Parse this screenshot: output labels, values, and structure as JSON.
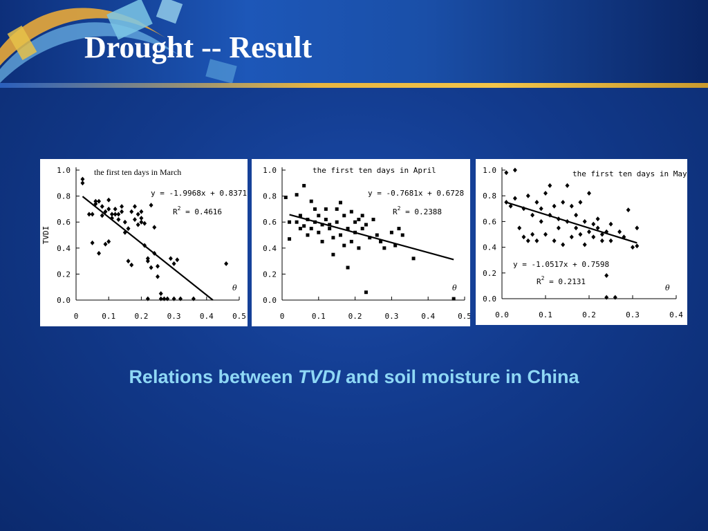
{
  "slide": {
    "title": "Drought -- Result",
    "caption_pre": "Relations between ",
    "caption_em": "TVDI",
    "caption_post": " and soil moisture in China"
  },
  "chart_data": [
    {
      "type": "scatter",
      "title": "the first ten days in March",
      "ylabel": "TVDI",
      "xlabel": "θ",
      "xlim": [
        0,
        0.5
      ],
      "ylim": [
        0,
        1.0
      ],
      "x_ticks": [
        "0",
        "0.1",
        "0.2",
        "0.3",
        "0.4",
        "0.5"
      ],
      "y_ticks": [
        "0.0",
        "0.2",
        "0.4",
        "0.6",
        "0.8",
        "1.0"
      ],
      "equation": "y = -1.9968x + 0.8371",
      "r2_label": "R",
      "r2_sup": "2",
      "r2_value": " = 0.4616",
      "regression": {
        "slope": -1.9968,
        "intercept": 0.8371
      },
      "marker": "diamond",
      "points": [
        [
          0.02,
          0.93
        ],
        [
          0.02,
          0.9
        ],
        [
          0.04,
          0.66
        ],
        [
          0.05,
          0.66
        ],
        [
          0.05,
          0.44
        ],
        [
          0.06,
          0.76
        ],
        [
          0.06,
          0.74
        ],
        [
          0.07,
          0.76
        ],
        [
          0.07,
          0.36
        ],
        [
          0.08,
          0.72
        ],
        [
          0.08,
          0.65
        ],
        [
          0.09,
          0.68
        ],
        [
          0.09,
          0.43
        ],
        [
          0.1,
          0.45
        ],
        [
          0.1,
          0.7
        ],
        [
          0.1,
          0.77
        ],
        [
          0.11,
          0.66
        ],
        [
          0.11,
          0.63
        ],
        [
          0.12,
          0.66
        ],
        [
          0.12,
          0.7
        ],
        [
          0.13,
          0.62
        ],
        [
          0.13,
          0.66
        ],
        [
          0.14,
          0.68
        ],
        [
          0.14,
          0.72
        ],
        [
          0.15,
          0.52
        ],
        [
          0.15,
          0.6
        ],
        [
          0.16,
          0.55
        ],
        [
          0.16,
          0.3
        ],
        [
          0.17,
          0.27
        ],
        [
          0.17,
          0.68
        ],
        [
          0.18,
          0.62
        ],
        [
          0.18,
          0.72
        ],
        [
          0.19,
          0.58
        ],
        [
          0.19,
          0.66
        ],
        [
          0.2,
          0.6
        ],
        [
          0.2,
          0.63
        ],
        [
          0.2,
          0.68
        ],
        [
          0.21,
          0.42
        ],
        [
          0.21,
          0.59
        ],
        [
          0.22,
          0.32
        ],
        [
          0.22,
          0.3
        ],
        [
          0.23,
          0.25
        ],
        [
          0.23,
          0.73
        ],
        [
          0.24,
          0.36
        ],
        [
          0.24,
          0.56
        ],
        [
          0.25,
          0.26
        ],
        [
          0.25,
          0.18
        ],
        [
          0.26,
          0.05
        ],
        [
          0.26,
          0.01
        ],
        [
          0.27,
          0.01
        ],
        [
          0.28,
          0.01
        ],
        [
          0.29,
          0.32
        ],
        [
          0.3,
          0.28
        ],
        [
          0.31,
          0.31
        ],
        [
          0.22,
          0.01
        ],
        [
          0.3,
          0.01
        ],
        [
          0.32,
          0.01
        ],
        [
          0.36,
          0.01
        ],
        [
          0.46,
          0.28
        ]
      ]
    },
    {
      "type": "scatter",
      "title": "the first ten days in April",
      "ylabel": "",
      "xlabel": "θ",
      "xlim": [
        0,
        0.5
      ],
      "ylim": [
        0,
        1.0
      ],
      "x_ticks": [
        "0",
        "0.1",
        "0.2",
        "0.3",
        "0.4",
        "0.5"
      ],
      "y_ticks": [
        "0.0",
        "0.2",
        "0.4",
        "0.6",
        "0.8",
        "1.0"
      ],
      "equation": "y = -0.7681x + 0.6728",
      "r2_label": "R",
      "r2_sup": "2",
      "r2_value": " = 0.2388",
      "regression": {
        "slope": -0.7681,
        "intercept": 0.6728
      },
      "marker": "square",
      "points": [
        [
          0.01,
          0.79
        ],
        [
          0.02,
          0.6
        ],
        [
          0.02,
          0.47
        ],
        [
          0.04,
          0.81
        ],
        [
          0.04,
          0.6
        ],
        [
          0.05,
          0.55
        ],
        [
          0.05,
          0.65
        ],
        [
          0.06,
          0.57
        ],
        [
          0.06,
          0.88
        ],
        [
          0.07,
          0.5
        ],
        [
          0.07,
          0.62
        ],
        [
          0.08,
          0.55
        ],
        [
          0.08,
          0.76
        ],
        [
          0.09,
          0.6
        ],
        [
          0.09,
          0.7
        ],
        [
          0.1,
          0.52
        ],
        [
          0.1,
          0.65
        ],
        [
          0.11,
          0.58
        ],
        [
          0.11,
          0.45
        ],
        [
          0.12,
          0.62
        ],
        [
          0.12,
          0.7
        ],
        [
          0.13,
          0.55
        ],
        [
          0.13,
          0.58
        ],
        [
          0.14,
          0.48
        ],
        [
          0.14,
          0.35
        ],
        [
          0.15,
          0.7
        ],
        [
          0.15,
          0.6
        ],
        [
          0.16,
          0.75
        ],
        [
          0.16,
          0.5
        ],
        [
          0.17,
          0.65
        ],
        [
          0.17,
          0.42
        ],
        [
          0.18,
          0.55
        ],
        [
          0.18,
          0.25
        ],
        [
          0.19,
          0.68
        ],
        [
          0.19,
          0.45
        ],
        [
          0.2,
          0.6
        ],
        [
          0.2,
          0.52
        ],
        [
          0.21,
          0.62
        ],
        [
          0.21,
          0.4
        ],
        [
          0.22,
          0.65
        ],
        [
          0.22,
          0.55
        ],
        [
          0.23,
          0.58
        ],
        [
          0.23,
          0.06
        ],
        [
          0.24,
          0.48
        ],
        [
          0.25,
          0.62
        ],
        [
          0.26,
          0.5
        ],
        [
          0.27,
          0.45
        ],
        [
          0.28,
          0.4
        ],
        [
          0.3,
          0.52
        ],
        [
          0.31,
          0.42
        ],
        [
          0.32,
          0.55
        ],
        [
          0.33,
          0.5
        ],
        [
          0.36,
          0.32
        ],
        [
          0.47,
          0.01
        ]
      ]
    },
    {
      "type": "scatter",
      "title": "the first ten days in May",
      "ylabel": "",
      "xlabel": "θ",
      "xlim": [
        0,
        0.4
      ],
      "ylim": [
        0,
        1.0
      ],
      "x_ticks": [
        "0.0",
        "0.1",
        "0.2",
        "0.3",
        "0.4"
      ],
      "y_ticks": [
        "0.0",
        "0.2",
        "0.4",
        "0.6",
        "0.8",
        "1.0"
      ],
      "equation": "y = -1.0517x + 0.7598",
      "r2_label": "R",
      "r2_sup": "2",
      "r2_value": " = 0.2131",
      "regression": {
        "slope": -1.0517,
        "intercept": 0.7598
      },
      "marker": "diamond",
      "points": [
        [
          0.01,
          0.98
        ],
        [
          0.01,
          0.75
        ],
        [
          0.02,
          0.72
        ],
        [
          0.03,
          1.0
        ],
        [
          0.03,
          0.78
        ],
        [
          0.04,
          0.55
        ],
        [
          0.05,
          0.48
        ],
        [
          0.05,
          0.7
        ],
        [
          0.06,
          0.45
        ],
        [
          0.06,
          0.8
        ],
        [
          0.07,
          0.65
        ],
        [
          0.07,
          0.5
        ],
        [
          0.08,
          0.75
        ],
        [
          0.08,
          0.45
        ],
        [
          0.09,
          0.7
        ],
        [
          0.09,
          0.6
        ],
        [
          0.1,
          0.82
        ],
        [
          0.1,
          0.5
        ],
        [
          0.11,
          0.88
        ],
        [
          0.11,
          0.65
        ],
        [
          0.12,
          0.72
        ],
        [
          0.12,
          0.45
        ],
        [
          0.13,
          0.62
        ],
        [
          0.13,
          0.55
        ],
        [
          0.14,
          0.75
        ],
        [
          0.14,
          0.42
        ],
        [
          0.15,
          0.6
        ],
        [
          0.15,
          0.88
        ],
        [
          0.16,
          0.72
        ],
        [
          0.16,
          0.48
        ],
        [
          0.17,
          0.55
        ],
        [
          0.17,
          0.65
        ],
        [
          0.18,
          0.75
        ],
        [
          0.18,
          0.5
        ],
        [
          0.19,
          0.6
        ],
        [
          0.19,
          0.42
        ],
        [
          0.2,
          0.52
        ],
        [
          0.2,
          0.82
        ],
        [
          0.21,
          0.58
        ],
        [
          0.21,
          0.48
        ],
        [
          0.22,
          0.55
        ],
        [
          0.22,
          0.62
        ],
        [
          0.23,
          0.5
        ],
        [
          0.23,
          0.45
        ],
        [
          0.24,
          0.52
        ],
        [
          0.24,
          0.18
        ],
        [
          0.24,
          0.01
        ],
        [
          0.25,
          0.58
        ],
        [
          0.25,
          0.45
        ],
        [
          0.26,
          0.01
        ],
        [
          0.27,
          0.52
        ],
        [
          0.28,
          0.48
        ],
        [
          0.29,
          0.69
        ],
        [
          0.3,
          0.4
        ],
        [
          0.31,
          0.55
        ],
        [
          0.31,
          0.41
        ]
      ]
    }
  ]
}
